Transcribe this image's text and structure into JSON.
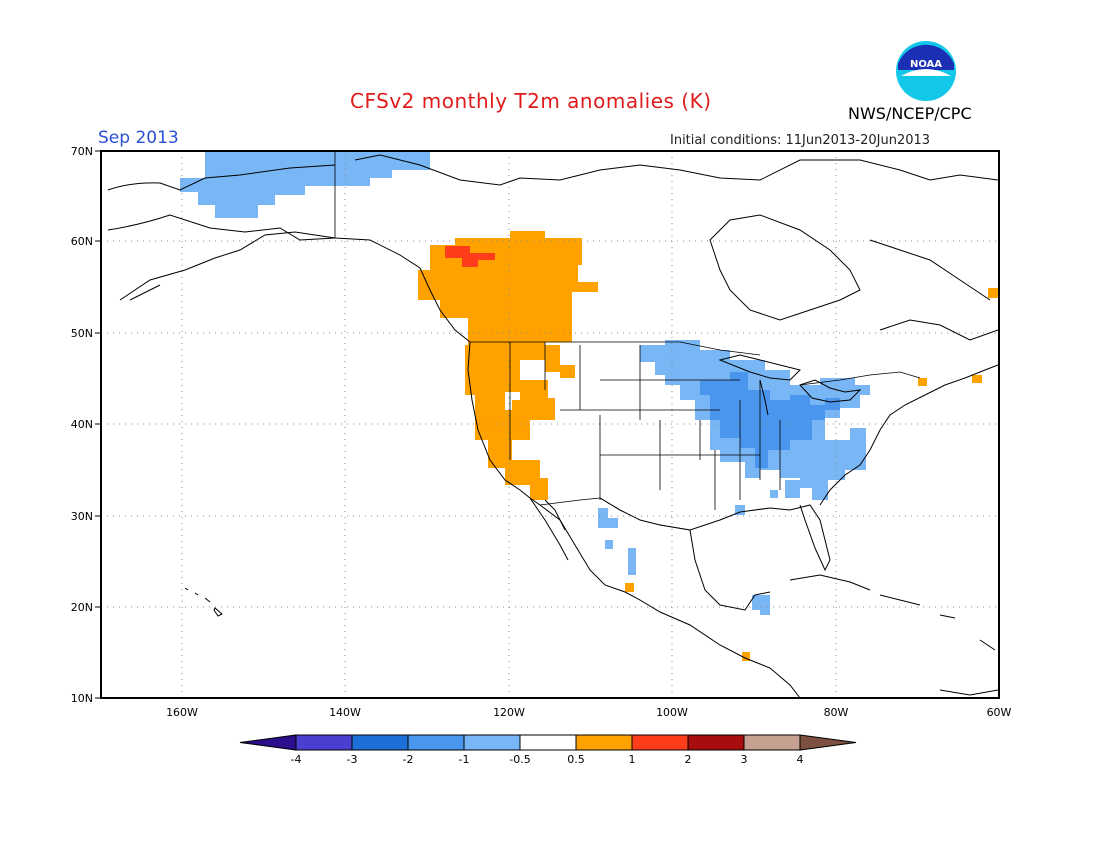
{
  "title": "CFSv2 monthly T2m anomalies (K)",
  "agency": "NWS/NCEP/CPC",
  "month": "Sep 2013",
  "initial_conditions": "Initial conditions: 11Jun2013-20Jun2013",
  "logo_text": "NOAA",
  "lat_labels": [
    "70N",
    "60N",
    "50N",
    "40N",
    "30N",
    "20N",
    "10N"
  ],
  "lon_labels": [
    "160W",
    "140W",
    "120W",
    "100W",
    "80W",
    "60W"
  ],
  "colorbar": {
    "colors": [
      "#2a0e8c",
      "#4b3fd1",
      "#1f6fd8",
      "#4a96ee",
      "#79b6f5",
      "#ffffff",
      "#ffa200",
      "#ff3d1a",
      "#a80d0d",
      "#c6a091",
      "#7d4f3f"
    ],
    "labels": [
      "-4",
      "-3",
      "-2",
      "-1",
      "-0.5",
      "0.5",
      "1",
      "2",
      "3",
      "4"
    ]
  },
  "anomaly_colors": {
    "cool": "#79b6f5",
    "cool_strong": "#4a96ee",
    "warm": "#ffa200",
    "hot": "#ff3d1a"
  }
}
